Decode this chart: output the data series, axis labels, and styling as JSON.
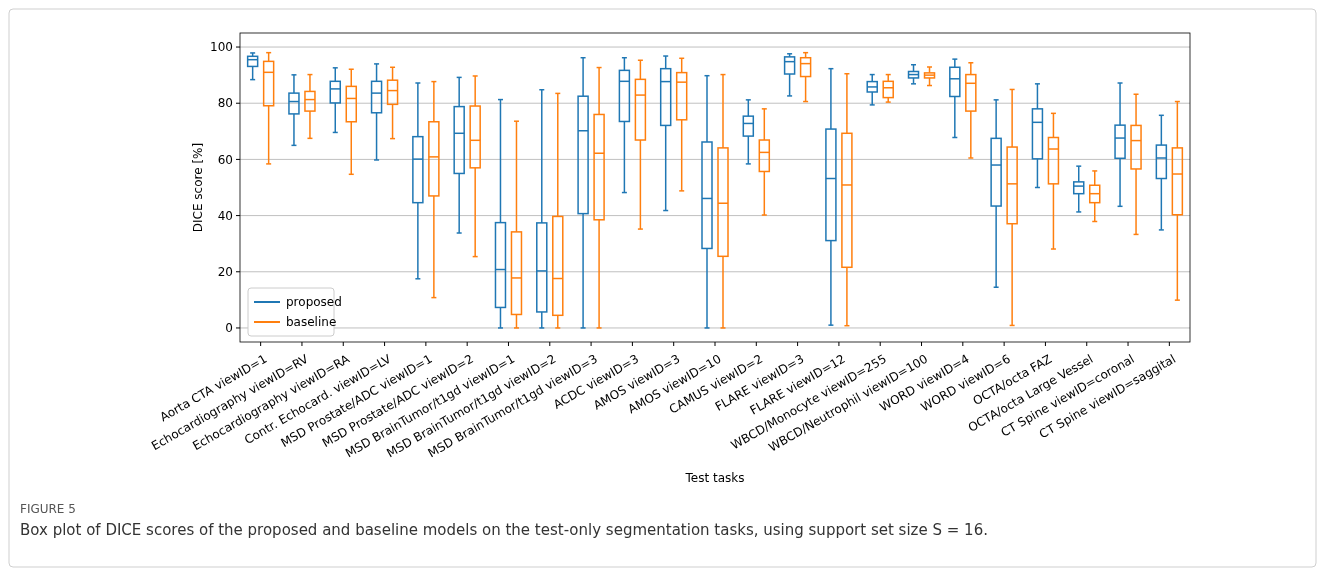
{
  "chart_data": {
    "type": "box",
    "xlabel": "Test tasks",
    "ylabel": "DICE score [%]",
    "categories": [
      "Aorta CTA viewID=1",
      "Echocardiography viewID=RV",
      "Echocardiography viewID=RA",
      "Contr. Echocard. viewID=LV",
      "MSD Prostate/ADC viewID=1",
      "MSD Prostate/ADC viewID=2",
      "MSD BrainTumor/t1gd viewID=1",
      "MSD BrainTumor/t1gd viewID=2",
      "MSD BrainTumor/t1gd viewID=3",
      "ACDC viewID=3",
      "AMOS viewID=3",
      "AMOS viewID=10",
      "CAMUS viewID=2",
      "FLARE viewID=3",
      "FLARE viewID=12",
      "WBCD/Monocyte viewID=255",
      "WBCD/Neutrophil viewID=100",
      "WORD viewID=4",
      "WORD viewID=6",
      "OCTA/octa FAZ",
      "OCTA/octa Large Vessel",
      "CT Spine viewID=coronal",
      "CT Spine viewID=saggital"
    ],
    "ylim": [
      -5,
      105
    ],
    "yticks": [
      0,
      20,
      40,
      60,
      80,
      100
    ],
    "grid": "y",
    "legend": "bottom left",
    "annotations": [
      "FIGURE 5",
      "Box plot of DICE scores of the proposed and baseline models on the test-only segmentation tasks, using support set size S = 16."
    ],
    "series": [
      {
        "name": "proposed",
        "color": "#1f77b4",
        "boxes": [
          {
            "low": 88.4,
            "q1": 93.1,
            "median": 95.5,
            "q3": 96.7,
            "high": 97.9
          },
          {
            "low": 65,
            "q1": 76.2,
            "median": 80.6,
            "q3": 83.6,
            "high": 90.1
          },
          {
            "low": 69.6,
            "q1": 80.1,
            "median": 85.1,
            "q3": 87.8,
            "high": 92.6
          },
          {
            "low": 59.8,
            "q1": 76.6,
            "median": 83.6,
            "q3": 87.8,
            "high": 94
          },
          {
            "low": 17.5,
            "q1": 44.6,
            "median": 60.1,
            "q3": 68.1,
            "high": 87.2
          },
          {
            "low": 33.8,
            "q1": 55,
            "median": 69.3,
            "q3": 78.8,
            "high": 89.2
          },
          {
            "low": 0,
            "q1": 7.3,
            "median": 20.8,
            "q3": 37.5,
            "high": 81.3
          },
          {
            "low": 0,
            "q1": 5.7,
            "median": 20.3,
            "q3": 37.4,
            "high": 84.8
          },
          {
            "low": 0,
            "q1": 40.7,
            "median": 70.2,
            "q3": 82.5,
            "high": 96.2
          },
          {
            "low": 48.2,
            "q1": 73.5,
            "median": 87.8,
            "q3": 91.7,
            "high": 96.2
          },
          {
            "low": 41.8,
            "q1": 72.1,
            "median": 87.7,
            "q3": 92.3,
            "high": 96.8
          },
          {
            "low": 0,
            "q1": 28.3,
            "median": 46.1,
            "q3": 66.2,
            "high": 89.8
          },
          {
            "low": 58.4,
            "q1": 68.3,
            "median": 72.8,
            "q3": 75.4,
            "high": 81.2
          },
          {
            "low": 82.6,
            "q1": 90.4,
            "median": 94.8,
            "q3": 96.5,
            "high": 97.6
          },
          {
            "low": 1,
            "q1": 31.1,
            "median": 53.2,
            "q3": 70.8,
            "high": 92.3
          },
          {
            "low": 79.4,
            "q1": 84,
            "median": 85.8,
            "q3": 87.7,
            "high": 90.2
          },
          {
            "low": 86.9,
            "q1": 89,
            "median": 90.2,
            "q3": 91.3,
            "high": 93.7
          },
          {
            "low": 67.8,
            "q1": 82.4,
            "median": 88.7,
            "q3": 92.8,
            "high": 95.7
          },
          {
            "low": 14.5,
            "q1": 43.4,
            "median": 58,
            "q3": 67.5,
            "high": 81.2
          },
          {
            "low": 50,
            "q1": 60.2,
            "median": 73.2,
            "q3": 78,
            "high": 86.9
          },
          {
            "low": 41.3,
            "q1": 47.8,
            "median": 50.5,
            "q3": 52,
            "high": 57.6
          },
          {
            "low": 43.3,
            "q1": 60.4,
            "median": 67.6,
            "q3": 72.2,
            "high": 87.2
          },
          {
            "low": 34.9,
            "q1": 53.2,
            "median": 60.5,
            "q3": 65.1,
            "high": 75.7
          }
        ]
      },
      {
        "name": "baseline",
        "color": "#ff7f0e",
        "boxes": [
          {
            "low": 58.4,
            "q1": 79.1,
            "median": 91,
            "q3": 94.9,
            "high": 98
          },
          {
            "low": 67.5,
            "q1": 77.2,
            "median": 81.3,
            "q3": 84.2,
            "high": 90.2
          },
          {
            "low": 54.7,
            "q1": 73.4,
            "median": 81.7,
            "q3": 86,
            "high": 92.1
          },
          {
            "low": 67.4,
            "q1": 79.6,
            "median": 84.5,
            "q3": 88.2,
            "high": 92.8
          },
          {
            "low": 10.8,
            "q1": 47,
            "median": 60.9,
            "q3": 73.4,
            "high": 87.7
          },
          {
            "low": 25.4,
            "q1": 57,
            "median": 66.8,
            "q3": 79,
            "high": 89.7
          },
          {
            "low": 0,
            "q1": 4.8,
            "median": 17.8,
            "q3": 34.2,
            "high": 73.6
          },
          {
            "low": 0,
            "q1": 4.5,
            "median": 17.6,
            "q3": 39.7,
            "high": 83.5
          },
          {
            "low": 0,
            "q1": 38.5,
            "median": 62.2,
            "q3": 76,
            "high": 92.7
          },
          {
            "low": 35.2,
            "q1": 66.9,
            "median": 82.9,
            "q3": 88.5,
            "high": 95.3
          },
          {
            "low": 48.8,
            "q1": 74.1,
            "median": 87.5,
            "q3": 90.9,
            "high": 96
          },
          {
            "low": 0,
            "q1": 25.5,
            "median": 44.4,
            "q3": 64.1,
            "high": 90.2
          },
          {
            "low": 40.2,
            "q1": 55.7,
            "median": 62.5,
            "q3": 66.9,
            "high": 78
          },
          {
            "low": 80.6,
            "q1": 89.5,
            "median": 94.1,
            "q3": 96.2,
            "high": 98
          },
          {
            "low": 0.8,
            "q1": 21.6,
            "median": 50.9,
            "q3": 69.3,
            "high": 90.5
          },
          {
            "low": 80.4,
            "q1": 82,
            "median": 85.5,
            "q3": 87.8,
            "high": 90.2
          },
          {
            "low": 86.3,
            "q1": 89,
            "median": 90,
            "q3": 90.8,
            "high": 92.9
          },
          {
            "low": 60.5,
            "q1": 77.2,
            "median": 87.1,
            "q3": 90.2,
            "high": 94.4
          },
          {
            "low": 0.9,
            "q1": 37.1,
            "median": 51.3,
            "q3": 64.4,
            "high": 84.9
          },
          {
            "low": 28.1,
            "q1": 51.3,
            "median": 63.7,
            "q3": 67.8,
            "high": 76.4
          },
          {
            "low": 37.9,
            "q1": 44.6,
            "median": 47.8,
            "q3": 50.8,
            "high": 55.9
          },
          {
            "low": 33.3,
            "q1": 56.6,
            "median": 66.7,
            "q3": 72.1,
            "high": 83.2
          },
          {
            "low": 9.9,
            "q1": 40.3,
            "median": 54.8,
            "q3": 64.1,
            "high": 80.6
          }
        ]
      }
    ]
  }
}
